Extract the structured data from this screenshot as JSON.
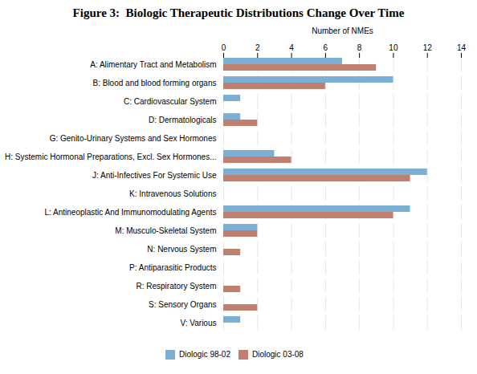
{
  "chart_data": {
    "type": "bar",
    "orientation": "horizontal",
    "title": "Figure 3:  Biologic Therapeutic Distributions Change Over Time",
    "xlabel": "Number of NMEs",
    "categories": [
      "A: Alimentary Tract and Metabolism",
      "B: Blood and blood forming organs",
      "C: Cardiovascular System",
      "D: Dermatologicals",
      "G: Genito-Urinary Systems and Sex Hormones",
      "H: Systemic Hormonal Preparations, Excl. Sex Hormones...",
      "J: Anti-Infectives For Systemic Use",
      "K: Intravenous Solutions",
      "L: Antineoplastic And Immunomodulating Agents",
      "M: Musculo-Skeletal System",
      "N: Nervous System",
      "P: Antiparasitic Products",
      "R: Respiratory System",
      "S: Sensory Organs",
      "V: Various"
    ],
    "series": [
      {
        "name": "Diologic 98-02",
        "color": "#7BAFD4",
        "values": [
          7,
          10,
          1,
          1,
          0,
          3,
          12,
          0,
          11,
          2,
          0,
          0,
          0,
          0,
          1
        ]
      },
      {
        "name": "Diologic 03-08",
        "color": "#C08070",
        "values": [
          9,
          6,
          0,
          2,
          0,
          4,
          11,
          0,
          10,
          2,
          1,
          0,
          1,
          2,
          0
        ]
      }
    ],
    "xlim": [
      0,
      14
    ],
    "xticks": [
      0,
      2,
      4,
      6,
      8,
      10,
      12,
      14
    ],
    "grid": true,
    "legend": "bottom"
  }
}
